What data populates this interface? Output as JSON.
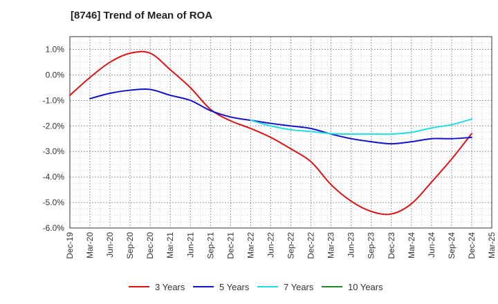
{
  "chart_data": {
    "type": "line",
    "title": "[8746]  Trend of Mean of ROA",
    "xlabel": "",
    "ylabel": "",
    "ylim": [
      -6.0,
      1.5
    ],
    "y_ticks": [
      1.0,
      0.0,
      -1.0,
      -2.0,
      -3.0,
      -4.0,
      -5.0,
      -6.0
    ],
    "y_tick_labels": [
      "1.0%",
      "0.0%",
      "-1.0%",
      "-2.0%",
      "-3.0%",
      "-4.0%",
      "-5.0%",
      "-6.0%"
    ],
    "categories": [
      "Dec-19",
      "Mar-20",
      "Jun-20",
      "Sep-20",
      "Dec-20",
      "Mar-21",
      "Jun-21",
      "Sep-21",
      "Dec-21",
      "Mar-22",
      "Jun-22",
      "Sep-22",
      "Dec-22",
      "Mar-23",
      "Jun-23",
      "Sep-23",
      "Dec-23",
      "Mar-24",
      "Jun-24",
      "Sep-24",
      "Dec-24",
      "Mar-25"
    ],
    "grid": true,
    "legend_position": "bottom",
    "series": [
      {
        "name": "3 Years",
        "color": "#dd1111",
        "values": [
          -0.8,
          -0.1,
          0.5,
          0.85,
          0.85,
          0.2,
          -0.5,
          -1.35,
          -1.8,
          -2.1,
          -2.45,
          -2.9,
          -3.4,
          -4.3,
          -4.95,
          -5.35,
          -5.45,
          -5.05,
          -4.2,
          -3.3,
          -2.3,
          null
        ]
      },
      {
        "name": "5 Years",
        "color": "#1111cc",
        "values": [
          null,
          -0.93,
          -0.72,
          -0.6,
          -0.57,
          -0.8,
          -1.0,
          -1.4,
          -1.65,
          -1.78,
          -1.9,
          -2.0,
          -2.1,
          -2.32,
          -2.5,
          -2.62,
          -2.7,
          -2.62,
          -2.5,
          -2.5,
          -2.45,
          null
        ]
      },
      {
        "name": "7 Years",
        "color": "#22dddd",
        "values": [
          null,
          null,
          null,
          null,
          null,
          null,
          null,
          null,
          null,
          -1.78,
          -2.0,
          -2.15,
          -2.22,
          -2.3,
          -2.32,
          -2.32,
          -2.32,
          -2.25,
          -2.08,
          -1.95,
          -1.73,
          null
        ]
      },
      {
        "name": "10 Years",
        "color": "#22882a",
        "values": [
          null,
          null,
          null,
          null,
          null,
          null,
          null,
          null,
          null,
          null,
          null,
          null,
          null,
          null,
          null,
          null,
          null,
          null,
          null,
          null,
          null,
          null
        ]
      }
    ]
  }
}
